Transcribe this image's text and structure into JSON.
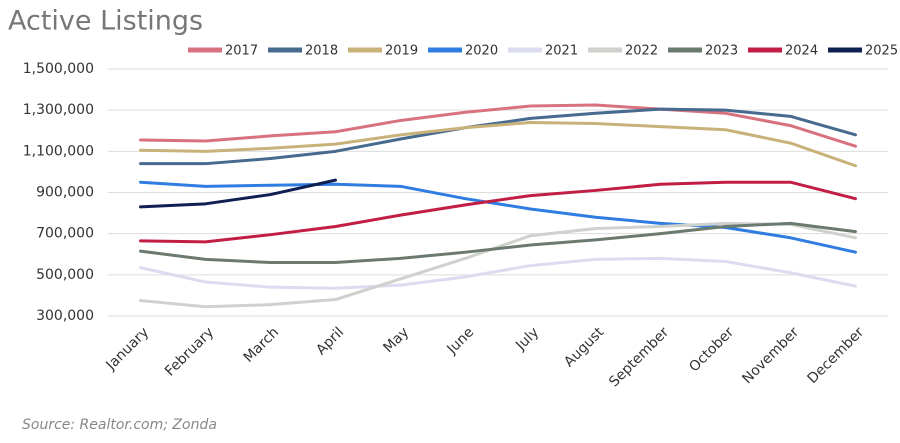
{
  "chart_data": {
    "type": "line",
    "title": "Active Listings",
    "source": "Source: Realtor.com; Zonda",
    "categories": [
      "January",
      "February",
      "March",
      "April",
      "May",
      "June",
      "July",
      "August",
      "September",
      "October",
      "November",
      "December"
    ],
    "series": [
      {
        "name": "2017",
        "color": "#d9727f",
        "values": [
          1155000,
          1150000,
          1175000,
          1195000,
          1250000,
          1290000,
          1320000,
          1325000,
          1305000,
          1285000,
          1225000,
          1125000
        ]
      },
      {
        "name": "2018",
        "color": "#476a8f",
        "values": [
          1040000,
          1040000,
          1065000,
          1100000,
          1160000,
          1215000,
          1260000,
          1285000,
          1305000,
          1300000,
          1270000,
          1180000
        ]
      },
      {
        "name": "2019",
        "color": "#c9b27a",
        "values": [
          1105000,
          1100000,
          1115000,
          1135000,
          1180000,
          1215000,
          1240000,
          1235000,
          1220000,
          1205000,
          1140000,
          1030000
        ]
      },
      {
        "name": "2020",
        "color": "#2f7de1",
        "values": [
          950000,
          930000,
          935000,
          940000,
          930000,
          870000,
          820000,
          780000,
          750000,
          730000,
          680000,
          610000
        ]
      },
      {
        "name": "2021",
        "color": "#dcdcf0",
        "values": [
          535000,
          465000,
          440000,
          435000,
          450000,
          490000,
          545000,
          575000,
          580000,
          565000,
          510000,
          445000
        ]
      },
      {
        "name": "2022",
        "color": "#cfd1cc",
        "values": [
          375000,
          345000,
          355000,
          380000,
          480000,
          580000,
          690000,
          725000,
          735000,
          750000,
          745000,
          680000
        ]
      },
      {
        "name": "2023",
        "color": "#6b7a6f",
        "values": [
          615000,
          575000,
          560000,
          560000,
          580000,
          610000,
          645000,
          670000,
          700000,
          735000,
          750000,
          710000
        ]
      },
      {
        "name": "2024",
        "color": "#c21e45",
        "values": [
          665000,
          660000,
          695000,
          735000,
          790000,
          840000,
          885000,
          910000,
          940000,
          950000,
          950000,
          870000
        ]
      },
      {
        "name": "2025",
        "color": "#0f1f52",
        "values": [
          830000,
          845000,
          890000,
          960000,
          null,
          null,
          null,
          null,
          null,
          null,
          null,
          null
        ]
      }
    ],
    "ylim": [
      300000,
      1500000
    ],
    "yticks": [
      {
        "value": 300000,
        "label": "300,000"
      },
      {
        "value": 500000,
        "label": "500,000"
      },
      {
        "value": 700000,
        "label": "700,000"
      },
      {
        "value": 900000,
        "label": "900,000"
      },
      {
        "value": 1100000,
        "label": "1,100,000"
      },
      {
        "value": 1300000,
        "label": "1,300,000"
      },
      {
        "value": 1500000,
        "label": "1,500,000"
      }
    ],
    "legend": "top"
  }
}
